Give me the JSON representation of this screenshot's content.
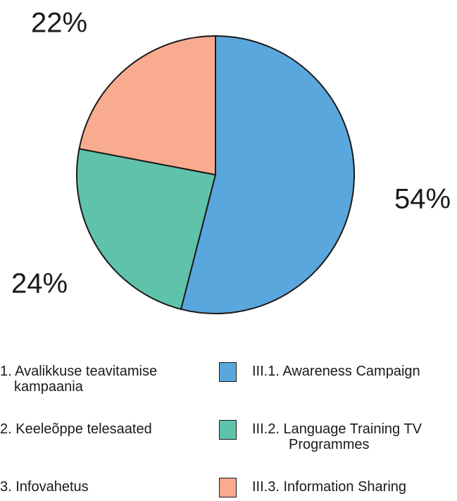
{
  "chart_data": {
    "type": "pie",
    "categories": [
      "III.1. Awareness Campaign",
      "III.2. Language Training TV Programmes",
      "III.3. Information Sharing"
    ],
    "categories_et": [
      "1. Avalikkuse teavitamise kampaania",
      "2. Keeleõppe telesaated",
      "3. Infovahetus"
    ],
    "values": [
      54,
      24,
      22
    ],
    "value_labels": [
      "54%",
      "24%",
      "22%"
    ],
    "colors": [
      "#5aa7dd",
      "#5fc3ac",
      "#f9ab8f"
    ]
  }
}
